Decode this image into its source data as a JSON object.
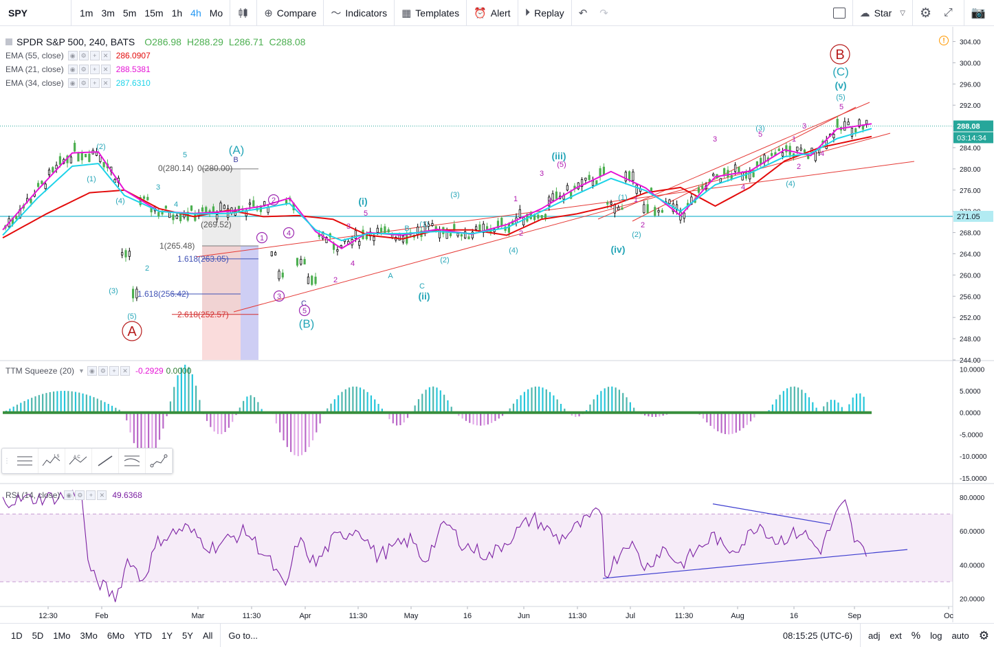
{
  "toolbar": {
    "symbol": "SPY",
    "intervals": [
      "1m",
      "3m",
      "5m",
      "15m",
      "1h",
      "4h",
      "Mo"
    ],
    "active_interval": "4h",
    "compare": "Compare",
    "indicators": "Indicators",
    "templates": "Templates",
    "alert": "Alert",
    "replay": "Replay",
    "star": "Star"
  },
  "legend": {
    "title": "SPDR S&P 500, 240, BATS",
    "open": "O286.98",
    "high": "H288.29",
    "low": "L286.71",
    "close": "C288.08",
    "ema": [
      {
        "label": "EMA (55, close)",
        "value": "286.0907",
        "color": "#e30b0b"
      },
      {
        "label": "EMA (21, close)",
        "value": "288.5381",
        "color": "#e513d6"
      },
      {
        "label": "EMA (34, close)",
        "value": "287.6310",
        "color": "#1dd3e8"
      }
    ],
    "ttm": {
      "label": "TTM Squeeze (20)",
      "v1": "-0.2929",
      "v2": "0.0000"
    },
    "rsi": {
      "label": "RSI (14, close)",
      "value": "49.6368"
    }
  },
  "chart_data": [
    {
      "type": "candlestick",
      "title": "SPDR S&P 500, 240, BATS",
      "ylim": [
        244,
        306
      ],
      "y_ticks": [
        "304.00",
        "300.00",
        "296.00",
        "292.00",
        "288.00",
        "284.00",
        "280.00",
        "276.00",
        "272.00",
        "268.00",
        "264.00",
        "260.00",
        "256.00",
        "252.00",
        "248.00",
        "244.00"
      ],
      "last_price": "288.08",
      "countdown": "03:14:34",
      "hline": "271.05",
      "ema": [
        {
          "name": "EMA 55",
          "color": "#e30b0b",
          "x": [
            0,
            5,
            10,
            14,
            18,
            22,
            26,
            30,
            34,
            38,
            42,
            46,
            50,
            54,
            58,
            62,
            66,
            70,
            74,
            78,
            82,
            86,
            90,
            94,
            100
          ],
          "values": [
            267,
            271.5,
            275.5,
            276,
            272.5,
            271,
            272.2,
            271,
            271.2,
            270.5,
            267.5,
            266.8,
            268.5,
            268.5,
            267.5,
            270.5,
            271.5,
            273,
            275.5,
            276.5,
            273,
            276.5,
            281.5,
            284,
            286.1
          ]
        },
        {
          "name": "EMA 21",
          "color": "#e513d6",
          "x": [
            0,
            4,
            8,
            11,
            14,
            18,
            22,
            26,
            30,
            33,
            36,
            39,
            42,
            46,
            50,
            54,
            58,
            62,
            66,
            70,
            74,
            78,
            82,
            86,
            90,
            93,
            96,
            100
          ],
          "values": [
            268.5,
            276,
            283,
            283.2,
            276,
            272,
            271.6,
            272,
            273,
            274.5,
            268.2,
            265,
            268,
            267.5,
            268.6,
            267.7,
            269.5,
            272.5,
            276.4,
            279.5,
            276.4,
            271.2,
            278.5,
            279.6,
            283.6,
            282.5,
            287.5,
            288.5
          ]
        },
        {
          "name": "EMA 34",
          "color": "#1dd3e8",
          "x": [
            0,
            4,
            8,
            11,
            14,
            18,
            22,
            26,
            30,
            33,
            36,
            39,
            42,
            46,
            50,
            54,
            58,
            62,
            66,
            70,
            74,
            78,
            82,
            86,
            90,
            93,
            96,
            100
          ],
          "values": [
            267.5,
            274.5,
            280.5,
            281,
            275,
            272,
            271.5,
            271.6,
            272.6,
            273.5,
            268.5,
            266.5,
            267.8,
            267.8,
            268.2,
            267.8,
            268.9,
            272,
            275.2,
            278.2,
            275.9,
            272,
            277,
            279.2,
            282.3,
            282.9,
            285.7,
            287.6
          ]
        }
      ],
      "fib_labels": [
        "0(280.14)",
        "0(280.00)",
        "1(265.48)",
        "(269.52)",
        "1.618(263.05)",
        "1.618(256.42)",
        "2.618(252.57)"
      ],
      "wave_labels": {
        "big": [
          "A",
          "B"
        ],
        "teal_big": [
          "(A)",
          "(B)",
          "(C)"
        ],
        "teal_bold": [
          "(i)",
          "(ii)",
          "(iii)",
          "(iv)",
          "(v)"
        ],
        "small": [
          "(1)",
          "(2)",
          "(3)",
          "(4)",
          "(5)",
          "1",
          "2",
          "3",
          "4",
          "5",
          "A",
          "B",
          "C"
        ]
      }
    },
    {
      "type": "histogram",
      "title": "TTM Squeeze (20)",
      "y_ticks": [
        "10.0000",
        "5.0000",
        "0.0000",
        "-5.0000",
        "-10.0000",
        "-15.0000"
      ],
      "ylim": [
        -15.5,
        11
      ]
    },
    {
      "type": "line",
      "title": "RSI (14, close)",
      "y_ticks": [
        "80.0000",
        "60.0000",
        "40.0000",
        "20.0000"
      ],
      "ylim": [
        17,
        86
      ],
      "band": [
        30,
        70
      ],
      "last": 49.6368
    }
  ],
  "x_axis": {
    "ticks": [
      "12:30",
      "Feb",
      "Mar",
      "11:30",
      "Apr",
      "11:30",
      "May",
      "16",
      "Jun",
      "11:30",
      "Jul",
      "11:30",
      "Aug",
      "16",
      "Sep",
      "Oc"
    ]
  },
  "bottombar": {
    "ranges": [
      "1D",
      "5D",
      "1Mo",
      "3Mo",
      "6Mo",
      "YTD",
      "1Y",
      "5Y",
      "All"
    ],
    "goto": "Go to...",
    "time": "08:15:25 (UTC-6)",
    "adj": "adj",
    "ext": "ext",
    "pct": "%",
    "log": "log",
    "auto": "auto"
  }
}
